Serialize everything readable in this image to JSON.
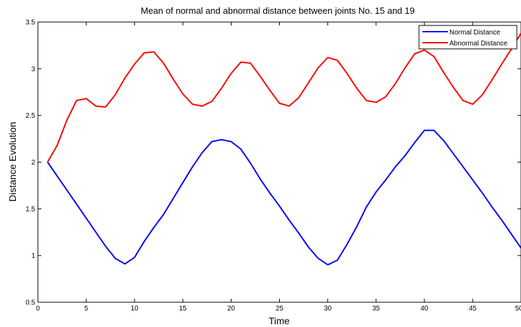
{
  "chart_data": {
    "type": "line",
    "title": "Mean of normal and abnormal distance between joints No. 15 and 19",
    "xlabel": "Time",
    "ylabel": "Distance Evolution",
    "xlim": [
      0,
      50
    ],
    "ylim": [
      0.5,
      3.5
    ],
    "xticks": [
      "0",
      "5",
      "10",
      "15",
      "20",
      "25",
      "30",
      "35",
      "40",
      "45",
      "50"
    ],
    "yticks": [
      "0.5",
      "1",
      "1.5",
      "2",
      "2.5",
      "3",
      "3.5"
    ],
    "grid": false,
    "legend_position": "top-right",
    "x": [
      1,
      2,
      3,
      4,
      5,
      6,
      7,
      8,
      9,
      10,
      11,
      12,
      13,
      14,
      15,
      16,
      17,
      18,
      19,
      20,
      21,
      22,
      23,
      24,
      25,
      26,
      27,
      28,
      29,
      30,
      31,
      32,
      33,
      34,
      35,
      36,
      37,
      38,
      39,
      40,
      41,
      42,
      43,
      44,
      45,
      46,
      47,
      48,
      49,
      50
    ],
    "series": [
      {
        "name": "Normal Distance",
        "color": "#0000ff",
        "values": [
          2.0,
          1.85,
          1.7,
          1.55,
          1.4,
          1.25,
          1.1,
          0.97,
          0.91,
          0.98,
          1.15,
          1.3,
          1.44,
          1.61,
          1.78,
          1.95,
          2.1,
          2.22,
          2.24,
          2.22,
          2.14,
          1.99,
          1.82,
          1.67,
          1.53,
          1.38,
          1.24,
          1.09,
          0.97,
          0.9,
          0.95,
          1.12,
          1.31,
          1.52,
          1.68,
          1.81,
          1.95,
          2.07,
          2.21,
          2.34,
          2.34,
          2.23,
          2.09,
          1.95,
          1.81,
          1.67,
          1.52,
          1.38,
          1.23,
          1.08
        ]
      },
      {
        "name": "Abnormal Distance",
        "color": "#ff0000",
        "values": [
          2.0,
          2.18,
          2.45,
          2.66,
          2.68,
          2.6,
          2.59,
          2.72,
          2.9,
          3.05,
          3.17,
          3.18,
          3.06,
          2.89,
          2.73,
          2.62,
          2.6,
          2.65,
          2.79,
          2.95,
          3.07,
          3.06,
          2.92,
          2.77,
          2.63,
          2.6,
          2.69,
          2.85,
          3.01,
          3.12,
          3.09,
          2.95,
          2.79,
          2.66,
          2.64,
          2.7,
          2.84,
          3.01,
          3.16,
          3.2,
          3.13,
          2.96,
          2.8,
          2.66,
          2.62,
          2.72,
          2.88,
          3.05,
          3.21,
          3.38
        ]
      }
    ]
  },
  "legend": {
    "items": [
      {
        "label": "Normal Distance",
        "color": "#0000ff"
      },
      {
        "label": "Abnormal Distance",
        "color": "#ff0000"
      }
    ]
  }
}
